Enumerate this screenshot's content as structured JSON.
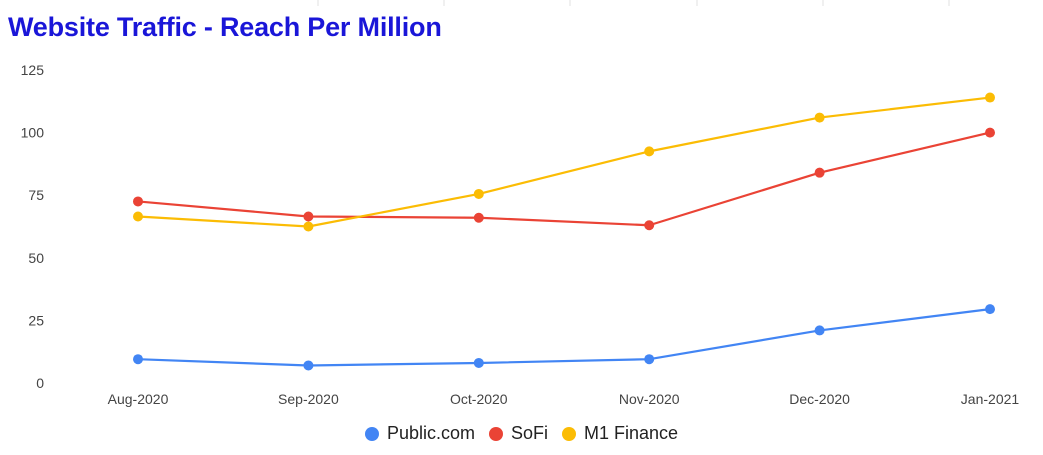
{
  "chart_data": {
    "type": "line",
    "title": "Website Traffic - Reach Per Million",
    "xlabel": "",
    "ylabel": "",
    "categories": [
      "Aug-2020",
      "Sep-2020",
      "Oct-2020",
      "Nov-2020",
      "Dec-2020",
      "Jan-2021"
    ],
    "ylim": [
      0,
      125
    ],
    "yticks": [
      0,
      25,
      50,
      75,
      100,
      125
    ],
    "grid": false,
    "legend_position": "bottom",
    "series": [
      {
        "name": "Public.com",
        "color": "#4285f4",
        "values": [
          9.5,
          7,
          8,
          9.5,
          21,
          29.5
        ]
      },
      {
        "name": "SoFi",
        "color": "#ea4335",
        "values": [
          72.5,
          66.5,
          66,
          63,
          84,
          100
        ]
      },
      {
        "name": "M1 Finance",
        "color": "#fbbc04",
        "values": [
          66.5,
          62.5,
          75.5,
          92.5,
          106,
          114
        ]
      }
    ]
  }
}
